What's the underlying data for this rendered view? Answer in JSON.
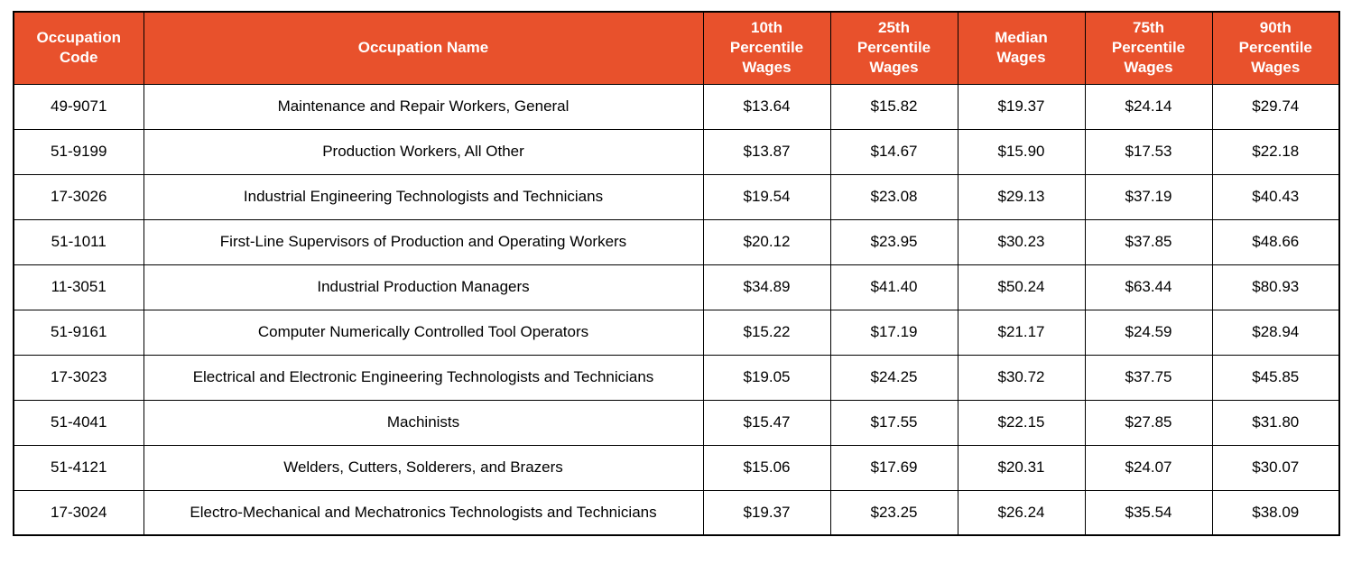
{
  "table": {
    "columns": [
      {
        "key": "occupation_code",
        "label": "Occupation Code"
      },
      {
        "key": "occupation_name",
        "label": "Occupation Name"
      },
      {
        "key": "wage_10th_percentile",
        "label": "10th Percentile Wages"
      },
      {
        "key": "wage_25th_percentile",
        "label": "25th Percentile Wages"
      },
      {
        "key": "wage_median",
        "label": "Median Wages"
      },
      {
        "key": "wage_75th_percentile",
        "label": "75th Percentile Wages"
      },
      {
        "key": "wage_90th_percentile",
        "label": "90th Percentile Wages"
      }
    ],
    "rows": [
      {
        "occupation_code": "49-9071",
        "occupation_name": "Maintenance and Repair Workers, General",
        "wage_10th_percentile": "$13.64",
        "wage_25th_percentile": "$15.82",
        "wage_median": "$19.37",
        "wage_75th_percentile": "$24.14",
        "wage_90th_percentile": "$29.74"
      },
      {
        "occupation_code": "51-9199",
        "occupation_name": "Production Workers, All Other",
        "wage_10th_percentile": "$13.87",
        "wage_25th_percentile": "$14.67",
        "wage_median": "$15.90",
        "wage_75th_percentile": "$17.53",
        "wage_90th_percentile": "$22.18"
      },
      {
        "occupation_code": "17-3026",
        "occupation_name": "Industrial Engineering Technologists and Technicians",
        "wage_10th_percentile": "$19.54",
        "wage_25th_percentile": "$23.08",
        "wage_median": "$29.13",
        "wage_75th_percentile": "$37.19",
        "wage_90th_percentile": "$40.43"
      },
      {
        "occupation_code": "51-1011",
        "occupation_name": "First-Line Supervisors of Production and Operating Workers",
        "wage_10th_percentile": "$20.12",
        "wage_25th_percentile": "$23.95",
        "wage_median": "$30.23",
        "wage_75th_percentile": "$37.85",
        "wage_90th_percentile": "$48.66"
      },
      {
        "occupation_code": "11-3051",
        "occupation_name": "Industrial Production Managers",
        "wage_10th_percentile": "$34.89",
        "wage_25th_percentile": "$41.40",
        "wage_median": "$50.24",
        "wage_75th_percentile": "$63.44",
        "wage_90th_percentile": "$80.93"
      },
      {
        "occupation_code": "51-9161",
        "occupation_name": "Computer Numerically Controlled Tool Operators",
        "wage_10th_percentile": "$15.22",
        "wage_25th_percentile": "$17.19",
        "wage_median": "$21.17",
        "wage_75th_percentile": "$24.59",
        "wage_90th_percentile": "$28.94"
      },
      {
        "occupation_code": "17-3023",
        "occupation_name": "Electrical and Electronic Engineering Technologists and Technicians",
        "wage_10th_percentile": "$19.05",
        "wage_25th_percentile": "$24.25",
        "wage_median": "$30.72",
        "wage_75th_percentile": "$37.75",
        "wage_90th_percentile": "$45.85"
      },
      {
        "occupation_code": "51-4041",
        "occupation_name": "Machinists",
        "wage_10th_percentile": "$15.47",
        "wage_25th_percentile": "$17.55",
        "wage_median": "$22.15",
        "wage_75th_percentile": "$27.85",
        "wage_90th_percentile": "$31.80"
      },
      {
        "occupation_code": "51-4121",
        "occupation_name": "Welders, Cutters, Solderers, and Brazers",
        "wage_10th_percentile": "$15.06",
        "wage_25th_percentile": "$17.69",
        "wage_median": "$20.31",
        "wage_75th_percentile": "$24.07",
        "wage_90th_percentile": "$30.07"
      },
      {
        "occupation_code": "17-3024",
        "occupation_name": "Electro-Mechanical and Mechatronics Technologists and Technicians",
        "wage_10th_percentile": "$19.37",
        "wage_25th_percentile": "$23.25",
        "wage_median": "$26.24",
        "wage_75th_percentile": "$35.54",
        "wage_90th_percentile": "$38.09"
      }
    ]
  },
  "colors": {
    "header_bg": "#E8512C",
    "header_text": "#FFFFFF",
    "border": "#000000",
    "row_bg": "#FFFFFF",
    "row_text": "#000000"
  }
}
